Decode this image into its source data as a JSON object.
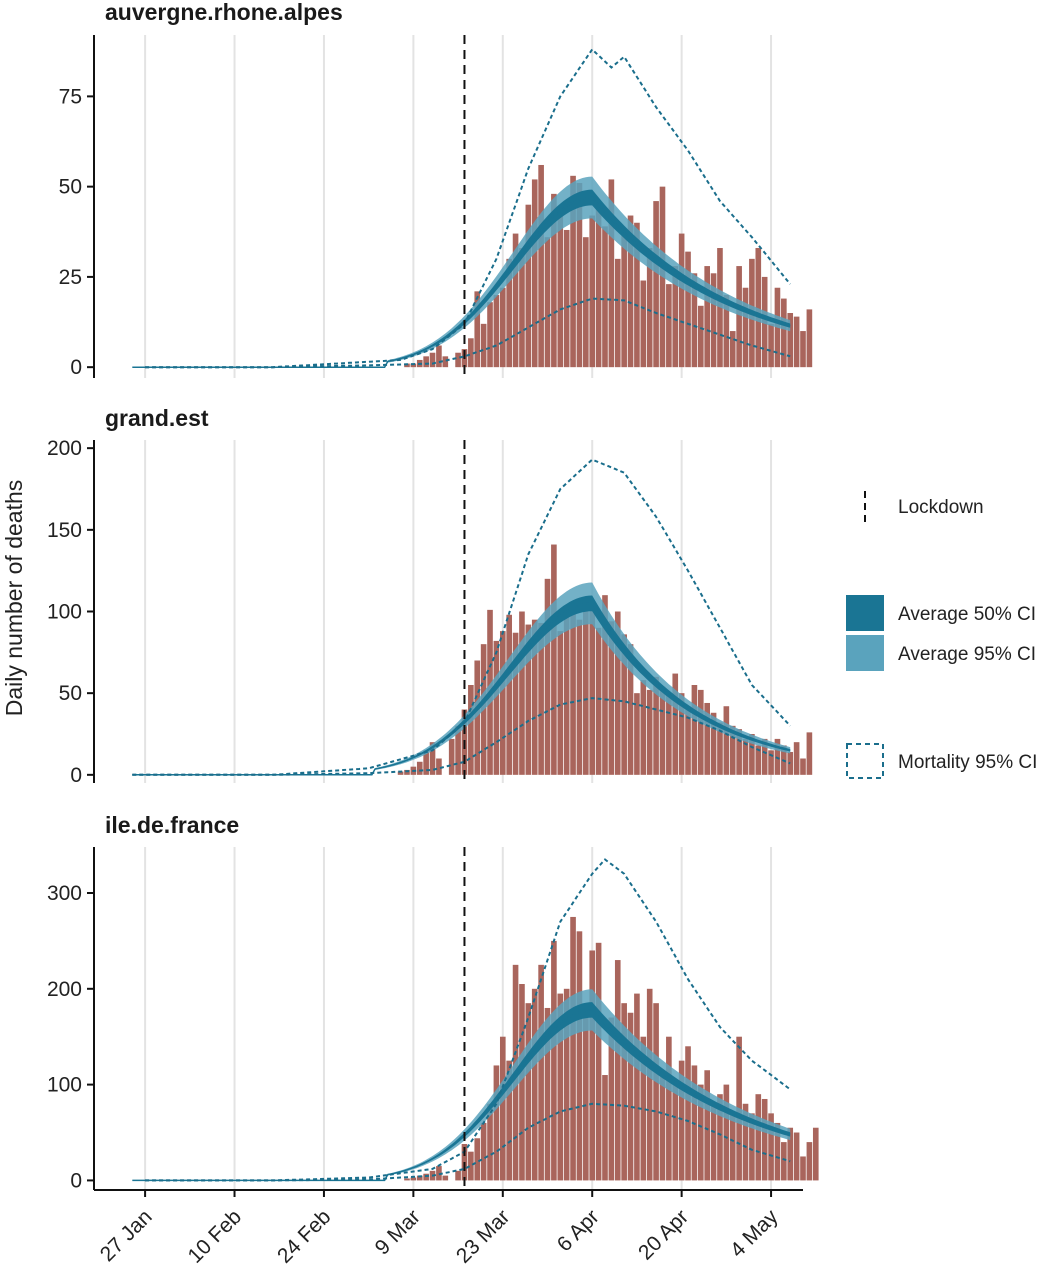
{
  "chart_data": {
    "type": "bar",
    "ylabel": "Daily number of deaths",
    "x_ticks": [
      "27 Jan",
      "10 Feb",
      "24 Feb",
      "9 Mar",
      "23 Mar",
      "6 Apr",
      "20 Apr",
      "4 May"
    ],
    "x_tick_days": [
      0,
      14,
      28,
      42,
      56,
      70,
      84,
      98
    ],
    "x_range_days": [
      -8,
      103
    ],
    "lockdown_day": 50,
    "colors": {
      "bars": "#a9655c",
      "ci50": "#1a7594",
      "ci95": "#5aa3bd",
      "mortality": "#1a6e8c",
      "lockdown": "#111111",
      "grid": "#e3e3e3"
    },
    "legend": {
      "lockdown": "Lockdown",
      "ci50": "Average 50% CI",
      "ci95": "Average 95% CI",
      "mortality": "Mortality 95% CI"
    },
    "panels": [
      {
        "title": "auvergne.rhone.alpes",
        "ylim": [
          -3,
          92
        ],
        "yticks": [
          0,
          25,
          50,
          75
        ],
        "bars_start_day": 41,
        "bars": [
          1,
          1,
          2,
          3,
          4,
          6,
          3,
          0,
          4,
          5,
          8,
          21,
          12,
          18,
          20,
          22,
          30,
          37,
          33,
          45,
          52,
          56,
          36,
          48,
          44,
          38,
          53,
          51,
          36,
          42,
          44,
          39,
          52,
          30,
          37,
          42,
          40,
          24,
          33,
          46,
          50,
          23,
          28,
          37,
          32,
          26,
          17,
          28,
          26,
          33,
          20,
          10,
          28,
          22,
          30,
          33,
          25,
          12,
          22,
          19,
          15,
          14,
          10,
          16
        ],
        "mean": {
          "peak_day": 70,
          "peak": 47,
          "start_day": 38,
          "end_day": 101,
          "end_val": 11.5
        },
        "mortality_lower": [
          [
            0,
            0
          ],
          [
            20,
            0
          ],
          [
            35,
            0.5
          ],
          [
            45,
            1
          ],
          [
            50,
            3
          ],
          [
            55,
            6
          ],
          [
            60,
            11
          ],
          [
            65,
            16
          ],
          [
            70,
            19
          ],
          [
            75,
            18.5
          ],
          [
            80,
            15
          ],
          [
            85,
            12
          ],
          [
            90,
            9
          ],
          [
            95,
            6
          ],
          [
            101,
            3
          ]
        ],
        "mortality_upper": [
          [
            0,
            0
          ],
          [
            20,
            0
          ],
          [
            30,
            1
          ],
          [
            40,
            2
          ],
          [
            45,
            5
          ],
          [
            50,
            12
          ],
          [
            55,
            30
          ],
          [
            60,
            55
          ],
          [
            65,
            75
          ],
          [
            70,
            88
          ],
          [
            73,
            83
          ],
          [
            75,
            86
          ],
          [
            80,
            72
          ],
          [
            85,
            60
          ],
          [
            90,
            46
          ],
          [
            95,
            36
          ],
          [
            101,
            23
          ]
        ]
      },
      {
        "title": "grand.est",
        "ylim": [
          -5,
          205
        ],
        "yticks": [
          0,
          50,
          100,
          150,
          200
        ],
        "bars_start_day": 40,
        "bars": [
          2,
          3,
          5,
          8,
          15,
          20,
          10,
          0,
          22,
          30,
          40,
          55,
          70,
          80,
          101,
          82,
          88,
          98,
          87,
          100,
          92,
          95,
          93,
          120,
          141,
          88,
          100,
          99,
          95,
          101,
          105,
          90,
          110,
          94,
          100,
          86,
          80,
          50,
          58,
          52,
          60,
          54,
          50,
          62,
          50,
          42,
          55,
          52,
          44,
          38,
          32,
          42,
          30,
          28,
          22,
          25,
          18,
          22,
          15,
          22,
          18,
          14,
          20,
          10,
          26
        ],
        "mean": {
          "peak_day": 70,
          "peak": 105,
          "start_day": 36,
          "end_day": 101,
          "end_val": 15
        },
        "mortality_lower": [
          [
            -2,
            0
          ],
          [
            20,
            0
          ],
          [
            35,
            1
          ],
          [
            45,
            3
          ],
          [
            50,
            8
          ],
          [
            55,
            20
          ],
          [
            60,
            33
          ],
          [
            65,
            43
          ],
          [
            70,
            47
          ],
          [
            75,
            45
          ],
          [
            80,
            40
          ],
          [
            85,
            35
          ],
          [
            90,
            27
          ],
          [
            95,
            17
          ],
          [
            101,
            7
          ]
        ],
        "mortality_upper": [
          [
            -2,
            0
          ],
          [
            20,
            0
          ],
          [
            35,
            4
          ],
          [
            45,
            15
          ],
          [
            50,
            32
          ],
          [
            55,
            75
          ],
          [
            60,
            135
          ],
          [
            65,
            175
          ],
          [
            70,
            193
          ],
          [
            75,
            185
          ],
          [
            80,
            158
          ],
          [
            85,
            125
          ],
          [
            90,
            90
          ],
          [
            95,
            55
          ],
          [
            101,
            30
          ]
        ]
      },
      {
        "title": "ile.de.france",
        "ylim": [
          -10,
          348
        ],
        "yticks": [
          0,
          100,
          200,
          300
        ],
        "bars_start_day": 41,
        "bars": [
          2,
          3,
          5,
          7,
          10,
          15,
          5,
          0,
          10,
          38,
          30,
          44,
          60,
          80,
          120,
          150,
          125,
          225,
          205,
          185,
          200,
          225,
          180,
          250,
          195,
          200,
          275,
          260,
          180,
          240,
          248,
          110,
          170,
          230,
          185,
          175,
          195,
          150,
          200,
          185,
          115,
          150,
          100,
          125,
          140,
          120,
          100,
          115,
          80,
          90,
          100,
          70,
          150,
          80,
          70,
          90,
          85,
          70,
          60,
          40,
          55,
          50,
          25,
          40,
          55
        ],
        "mean": {
          "peak_day": 70,
          "peak": 178,
          "start_day": 38,
          "end_day": 101,
          "end_val": 48
        },
        "mortality_lower": [
          [
            0,
            0
          ],
          [
            20,
            0
          ],
          [
            35,
            1
          ],
          [
            45,
            5
          ],
          [
            50,
            12
          ],
          [
            55,
            30
          ],
          [
            60,
            55
          ],
          [
            65,
            72
          ],
          [
            70,
            80
          ],
          [
            75,
            78
          ],
          [
            80,
            72
          ],
          [
            85,
            62
          ],
          [
            90,
            48
          ],
          [
            95,
            32
          ],
          [
            101,
            20
          ]
        ],
        "mortality_upper": [
          [
            0,
            0
          ],
          [
            20,
            0
          ],
          [
            35,
            3
          ],
          [
            45,
            12
          ],
          [
            50,
            30
          ],
          [
            55,
            80
          ],
          [
            60,
            170
          ],
          [
            65,
            270
          ],
          [
            70,
            320
          ],
          [
            72,
            335
          ],
          [
            75,
            320
          ],
          [
            80,
            270
          ],
          [
            85,
            210
          ],
          [
            90,
            160
          ],
          [
            95,
            125
          ],
          [
            101,
            95
          ]
        ]
      }
    ]
  }
}
